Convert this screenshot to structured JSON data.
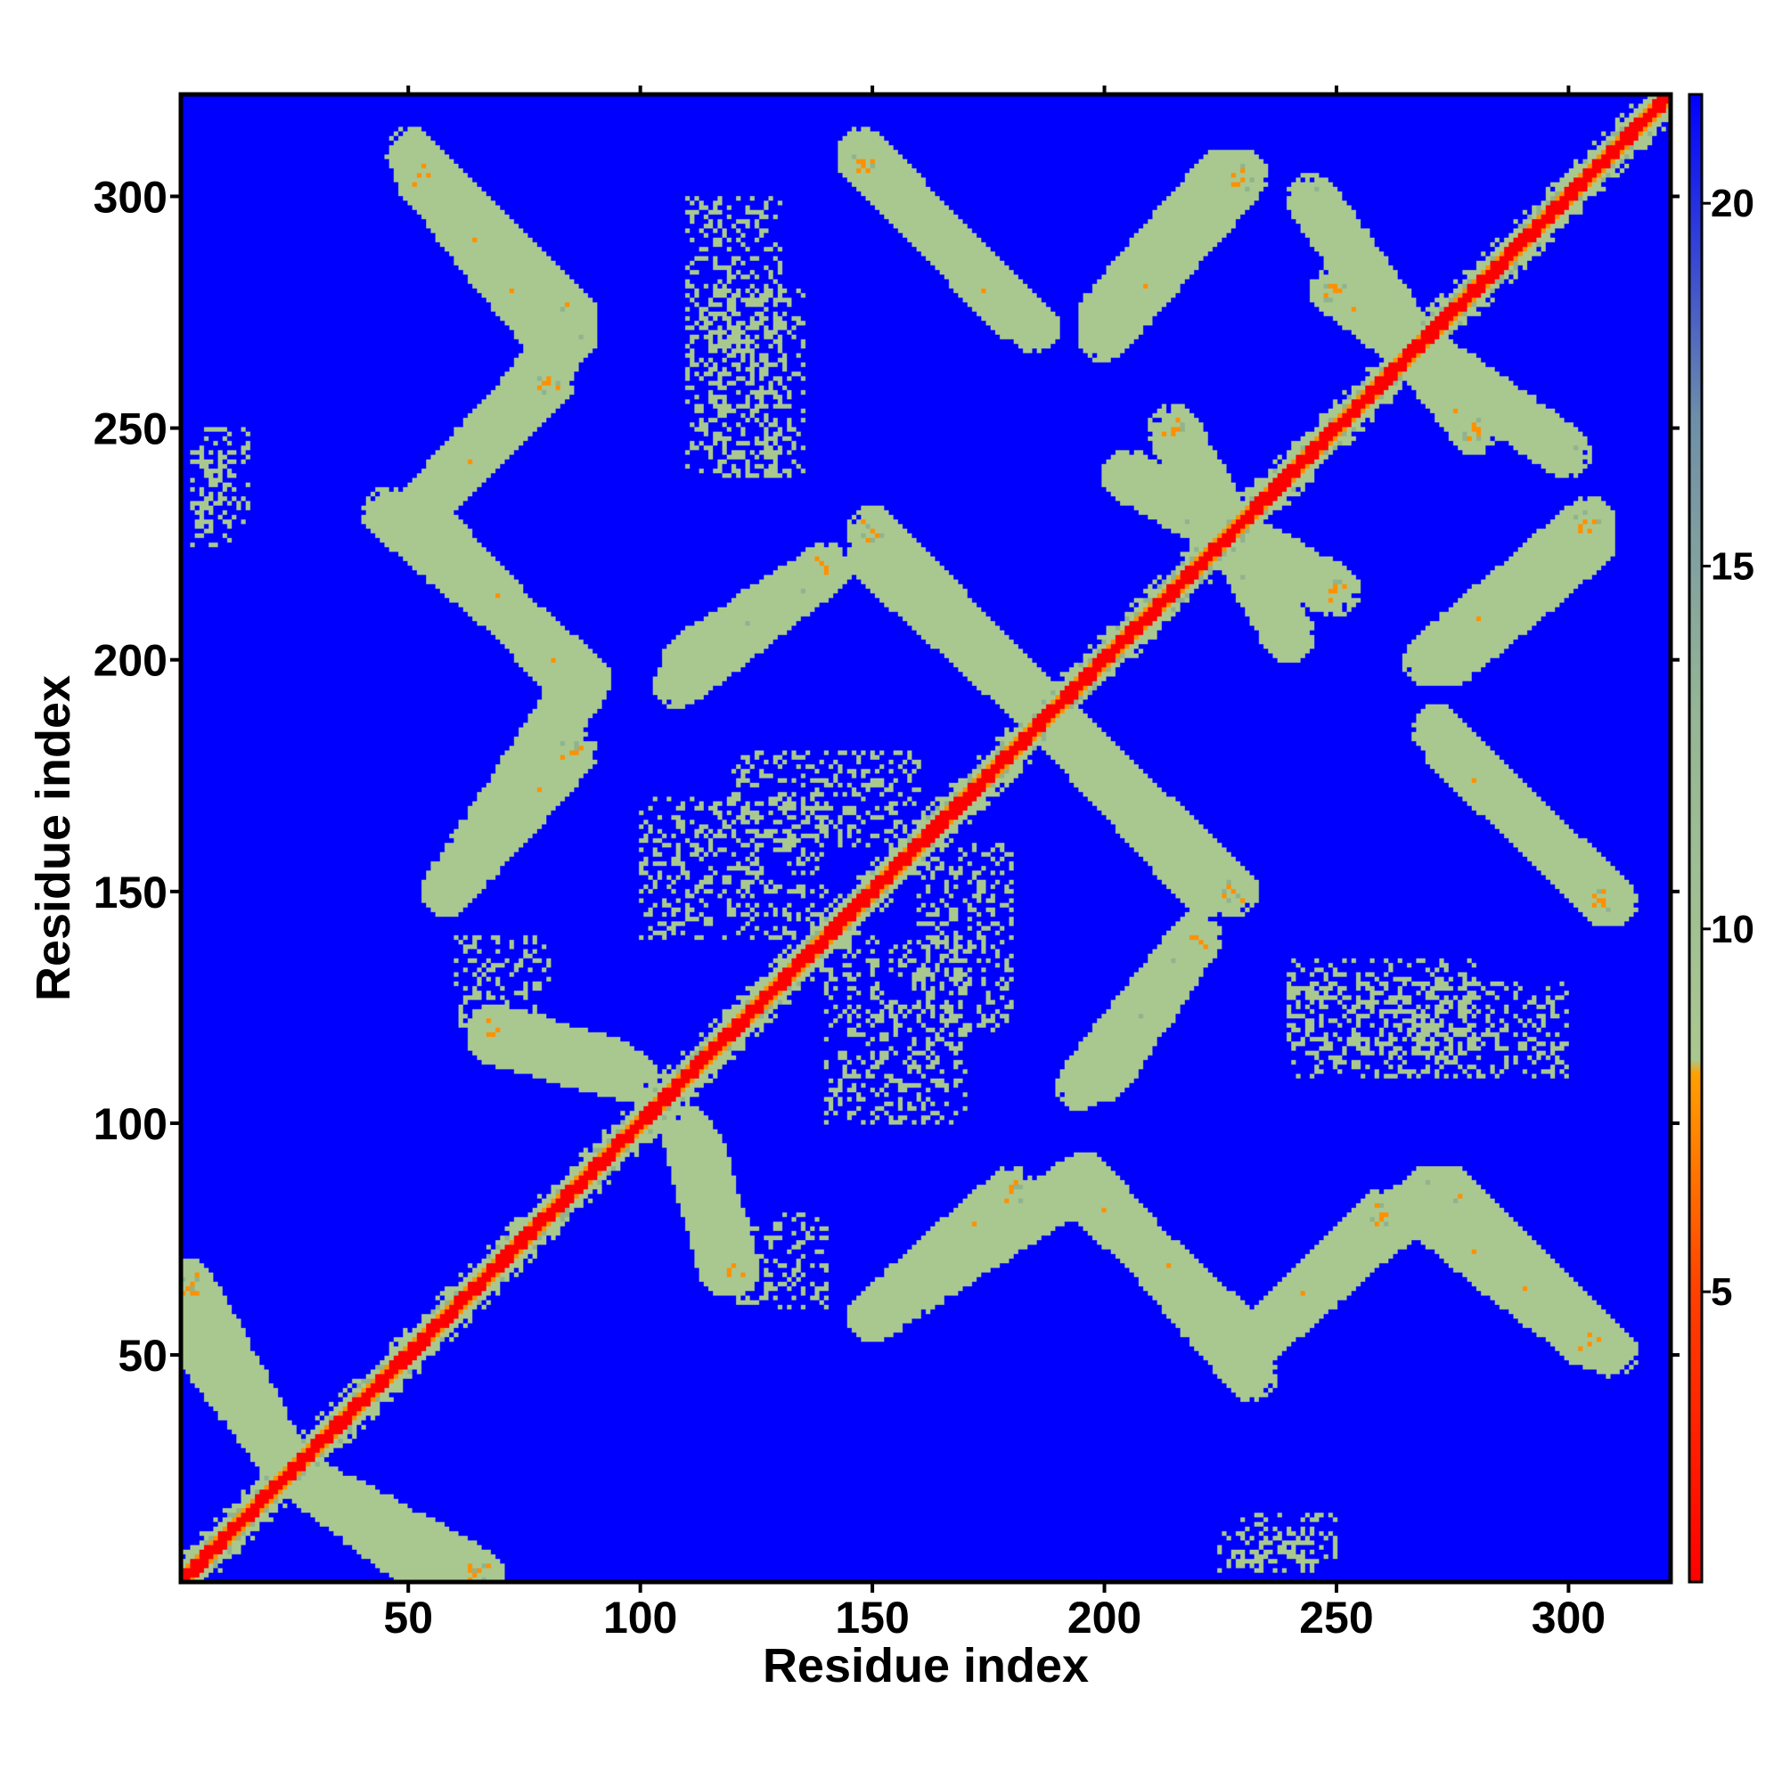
{
  "chart_data": {
    "type": "heatmap",
    "title": "",
    "xlabel": "Residue index",
    "ylabel": "Residue index",
    "n_residues": 322,
    "xlim": [
      1,
      322
    ],
    "ylim": [
      1,
      322
    ],
    "x_ticks": [
      50,
      100,
      150,
      200,
      250,
      300
    ],
    "y_ticks": [
      50,
      100,
      150,
      200,
      250,
      300
    ],
    "colorbar": {
      "ticks": [
        5,
        10,
        15,
        20
      ],
      "range": [
        1,
        21.5
      ],
      "color_stops": [
        {
          "value": 1.0,
          "color": "#ff0000"
        },
        {
          "value": 5.0,
          "color": "#ff4000"
        },
        {
          "value": 8.0,
          "color": "#ffa000"
        },
        {
          "value": 8.2,
          "color": "#a9c890"
        },
        {
          "value": 13.0,
          "color": "#95b595"
        },
        {
          "value": 17.0,
          "color": "#6f8fa8"
        },
        {
          "value": 21.5,
          "color": "#0000ff"
        }
      ]
    },
    "colors": {
      "background": "#0000ff",
      "contact_strong": "#ff0000",
      "contact_medium": "#ff9000",
      "contact_weak": "#a9c890"
    },
    "diagonal_band_halfwidth": 4,
    "contact_bands": [
      {
        "from": [
          50,
          310
        ],
        "to": [
          85,
          275
        ]
      },
      {
        "from": [
          85,
          270
        ],
        "to": [
          50,
          230
        ]
      },
      {
        "from": [
          45,
          232
        ],
        "to": [
          88,
          196
        ]
      },
      {
        "from": [
          88,
          196
        ],
        "to": [
          58,
          150
        ]
      },
      {
        "from": [
          148,
          310
        ],
        "to": [
          180,
          275
        ]
      },
      {
        "from": [
          110,
          200
        ],
        "to": [
          140,
          220
        ]
      },
      {
        "from": [
          150,
          222
        ],
        "to": [
          188,
          188
        ]
      },
      {
        "from": [
          188,
          188
        ],
        "to": [
          228,
          150
        ]
      },
      {
        "from": [
          195,
          108
        ],
        "to": [
          220,
          140
        ]
      },
      {
        "from": [
          150,
          58
        ],
        "to": [
          180,
          85
        ]
      },
      {
        "from": [
          195,
          85
        ],
        "to": [
          232,
          52
        ]
      },
      {
        "from": [
          232,
          52
        ],
        "to": [
          260,
          80
        ]
      },
      {
        "from": [
          270,
          80
        ],
        "to": [
          305,
          52
        ]
      },
      {
        "from": [
          272,
          185
        ],
        "to": [
          308,
          148
        ]
      },
      {
        "from": [
          275,
          200
        ],
        "to": [
          305,
          225
        ]
      },
      {
        "from": [
          205,
          240
        ],
        "to": [
          250,
          215
        ]
      },
      {
        "from": [
          200,
          270
        ],
        "to": [
          230,
          305
        ]
      },
      {
        "from": [
          245,
          300
        ],
        "to": [
          280,
          250
        ]
      },
      {
        "from": [
          68,
          118
        ],
        "to": [
          98,
          110
        ]
      },
      {
        "from": [
          112,
          95
        ],
        "to": [
          120,
          68
        ]
      },
      {
        "from": [
          2,
          55
        ],
        "to": [
          22,
          28
        ]
      },
      {
        "from": [
          28,
          22
        ],
        "to": [
          65,
          2
        ]
      }
    ],
    "sparse_regions": [
      {
        "x": [
          115,
          135
        ],
        "y": [
          240,
          280
        ]
      },
      {
        "x": [
          230,
          250
        ],
        "y": [
          5,
          15
        ]
      },
      {
        "x": [
          3,
          12
        ],
        "y": [
          225,
          245
        ]
      },
      {
        "x": [
          120,
          160
        ],
        "y": [
          160,
          180
        ]
      },
      {
        "x": [
          140,
          170
        ],
        "y": [
          100,
          140
        ]
      },
      {
        "x": [
          240,
          300
        ],
        "y": [
          110,
          130
        ]
      },
      {
        "x": [
          60,
          80
        ],
        "y": [
          120,
          140
        ]
      }
    ]
  }
}
